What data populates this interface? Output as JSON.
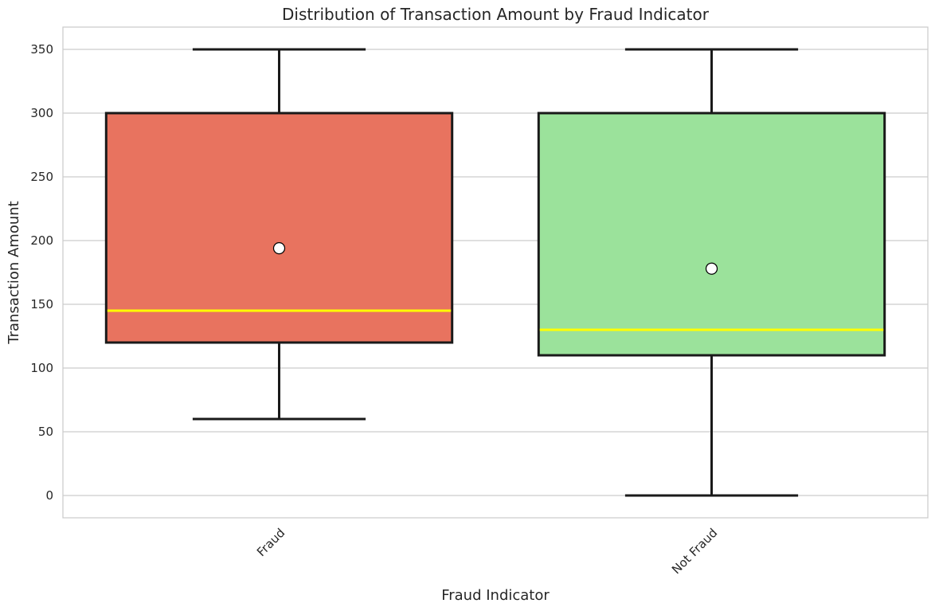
{
  "chart_data": {
    "type": "box",
    "title": "Distribution of Transaction Amount by Fraud Indicator",
    "xlabel": "Fraud Indicator",
    "ylabel": "Transaction Amount",
    "ylim": [
      -17.5,
      367.5
    ],
    "yticks": [
      0,
      50,
      100,
      150,
      200,
      250,
      300,
      350
    ],
    "ytick_labels": [
      "0",
      "50",
      "100",
      "150",
      "200",
      "250",
      "300",
      "350"
    ],
    "grid": true,
    "categories": [
      "Fraud",
      "Not Fraud"
    ],
    "series": [
      {
        "category": "Fraud",
        "whisker_low": 60,
        "q1": 120,
        "median": 145,
        "q3": 300,
        "whisker_high": 350,
        "mean": 194,
        "color": "#e8735f"
      },
      {
        "category": "Not Fraud",
        "whisker_low": 0,
        "q1": 110,
        "median": 130,
        "q3": 300,
        "whisker_high": 350,
        "mean": 178,
        "color": "#9be29b"
      }
    ],
    "median_color": "#ffff00",
    "box_edge_color": "#1a1a1a",
    "mean_marker_color": "#ffffff"
  }
}
